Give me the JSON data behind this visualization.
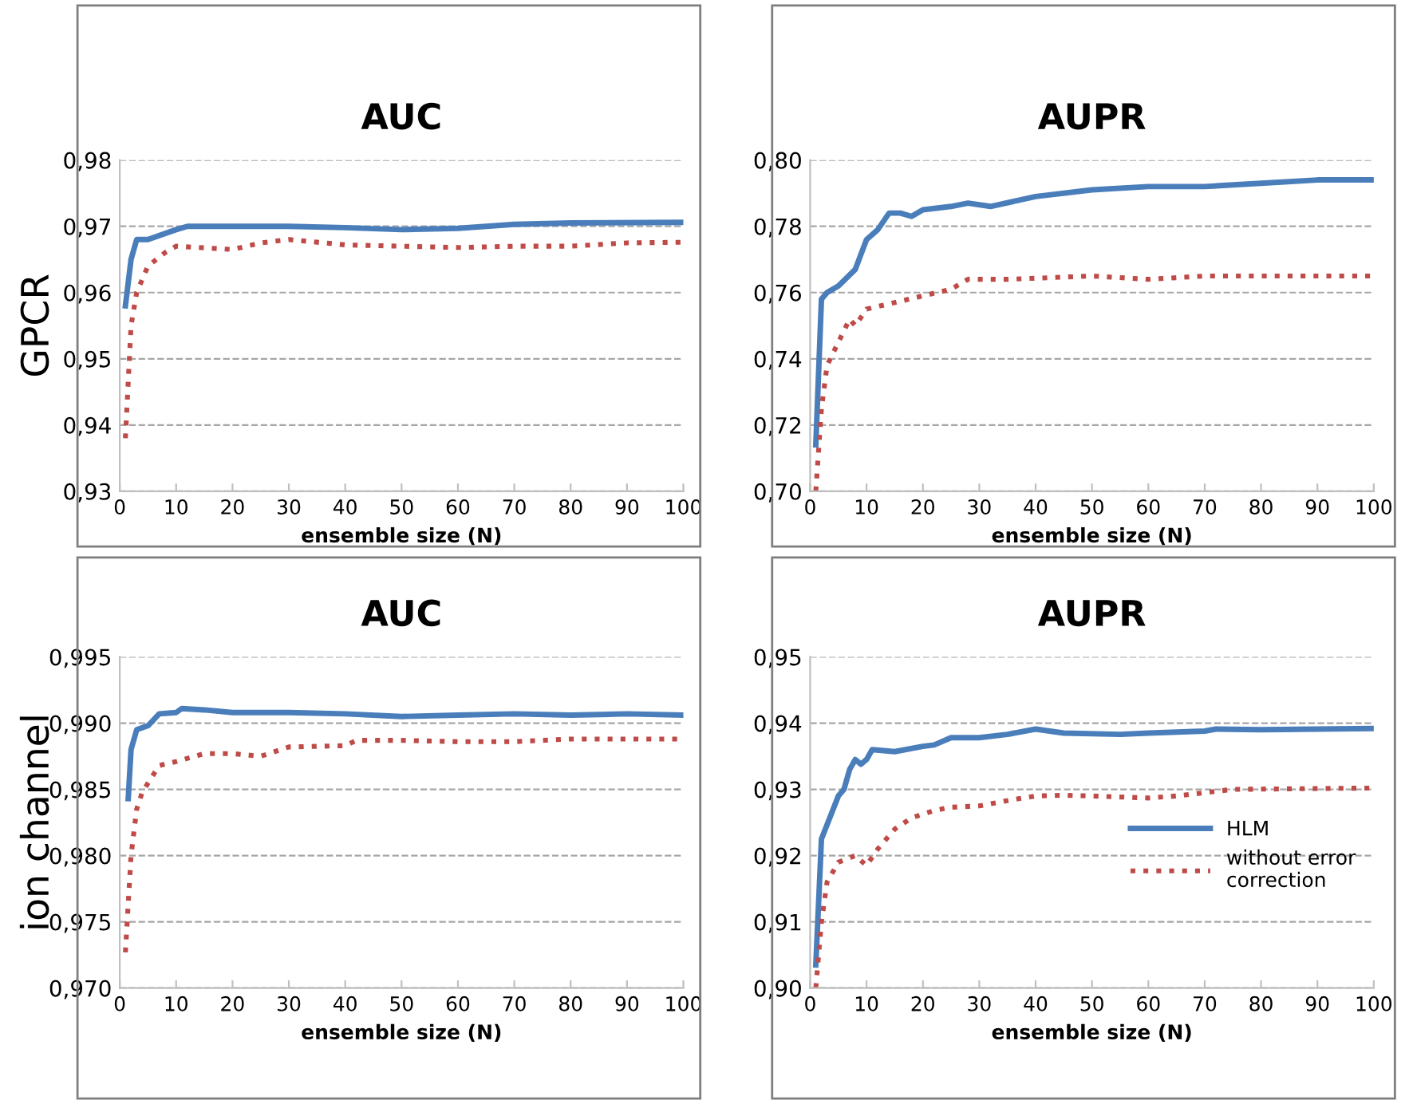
{
  "chart_data": [
    {
      "type": "line",
      "title": "AUC",
      "xlabel": "ensemble size (N)",
      "ylabel": "GPCR",
      "xlim": [
        0,
        100
      ],
      "ylim": [
        0.93,
        0.98
      ],
      "grid": "y",
      "legend": false,
      "marker": "none",
      "xticks": [
        0,
        10,
        20,
        30,
        40,
        50,
        60,
        70,
        80,
        90,
        100
      ],
      "yticks": [
        {
          "value": 0.93,
          "label": "0,93"
        },
        {
          "value": 0.94,
          "label": "0,94"
        },
        {
          "value": 0.95,
          "label": "0,95"
        },
        {
          "value": 0.96,
          "label": "0,96"
        },
        {
          "value": 0.97,
          "label": "0,97"
        },
        {
          "value": 0.98,
          "label": "0,98"
        }
      ],
      "series": [
        {
          "color": "#4a7ebb",
          "line_style": "solid",
          "x": [
            1,
            2,
            3,
            5,
            10,
            12,
            20,
            30,
            40,
            50,
            60,
            70,
            80,
            100
          ],
          "values": [
            0.958,
            0.965,
            0.968,
            0.968,
            0.9695,
            0.97,
            0.97,
            0.97,
            0.9698,
            0.9695,
            0.9697,
            0.9703,
            0.9705,
            0.9706
          ]
        },
        {
          "color": "#be4b48",
          "line_style": "dotted",
          "x": [
            1,
            2,
            3,
            5,
            8,
            10,
            20,
            25,
            30,
            40,
            50,
            60,
            70,
            80,
            90,
            100
          ],
          "values": [
            0.938,
            0.955,
            0.96,
            0.964,
            0.966,
            0.967,
            0.9665,
            0.9675,
            0.968,
            0.9672,
            0.967,
            0.9668,
            0.967,
            0.967,
            0.9675,
            0.9676
          ]
        }
      ]
    },
    {
      "type": "line",
      "title": "AUPR",
      "xlabel": "ensemble size (N)",
      "xlim": [
        0,
        100
      ],
      "ylim": [
        0.7,
        0.8
      ],
      "grid": "y",
      "legend": false,
      "marker": "none",
      "xticks": [
        0,
        10,
        20,
        30,
        40,
        50,
        60,
        70,
        80,
        90,
        100
      ],
      "yticks": [
        {
          "value": 0.7,
          "label": "0,70"
        },
        {
          "value": 0.72,
          "label": "0,72"
        },
        {
          "value": 0.74,
          "label": "0,74"
        },
        {
          "value": 0.76,
          "label": "0,76"
        },
        {
          "value": 0.78,
          "label": "0,78"
        },
        {
          "value": 0.8,
          "label": "0,80"
        }
      ],
      "series": [
        {
          "color": "#4a7ebb",
          "line_style": "solid",
          "x": [
            1,
            2,
            3,
            5,
            8,
            10,
            12,
            14,
            16,
            18,
            20,
            25,
            28,
            32,
            40,
            50,
            60,
            70,
            80,
            90,
            100
          ],
          "values": [
            0.714,
            0.758,
            0.76,
            0.762,
            0.767,
            0.776,
            0.779,
            0.784,
            0.784,
            0.783,
            0.785,
            0.786,
            0.787,
            0.786,
            0.789,
            0.791,
            0.792,
            0.792,
            0.793,
            0.794,
            0.794
          ]
        },
        {
          "color": "#be4b48",
          "line_style": "dotted",
          "x": [
            1,
            2,
            3,
            5,
            7,
            8,
            10,
            15,
            20,
            25,
            28,
            35,
            50,
            60,
            70,
            80,
            90,
            100
          ],
          "values": [
            0.7,
            0.725,
            0.738,
            0.745,
            0.752,
            0.75,
            0.755,
            0.757,
            0.759,
            0.761,
            0.764,
            0.764,
            0.765,
            0.764,
            0.765,
            0.765,
            0.765,
            0.765
          ]
        }
      ]
    },
    {
      "type": "line",
      "title": "AUC",
      "xlabel": "ensemble size (N)",
      "ylabel": "ion channel",
      "xlim": [
        0,
        100
      ],
      "ylim": [
        0.97,
        0.995
      ],
      "grid": "y",
      "legend": false,
      "marker": "none",
      "xticks": [
        0,
        10,
        20,
        30,
        40,
        50,
        60,
        70,
        80,
        90,
        100
      ],
      "yticks": [
        {
          "value": 0.97,
          "label": "0,970"
        },
        {
          "value": 0.975,
          "label": "0,975"
        },
        {
          "value": 0.98,
          "label": "0,980"
        },
        {
          "value": 0.985,
          "label": "0,985"
        },
        {
          "value": 0.99,
          "label": "0,990"
        },
        {
          "value": 0.995,
          "label": "0,995"
        }
      ],
      "series": [
        {
          "color": "#4a7ebb",
          "line_style": "solid",
          "x": [
            1.5,
            2,
            3,
            5,
            7,
            10,
            11,
            15,
            20,
            30,
            40,
            50,
            60,
            70,
            80,
            90,
            100
          ],
          "values": [
            0.9843,
            0.988,
            0.9895,
            0.9898,
            0.9907,
            0.9908,
            0.9911,
            0.991,
            0.9908,
            0.9908,
            0.9907,
            0.9905,
            0.9906,
            0.9907,
            0.9906,
            0.9907,
            0.9906
          ]
        },
        {
          "color": "#be4b48",
          "line_style": "dotted",
          "x": [
            1,
            2,
            3,
            4,
            7,
            10,
            15,
            20,
            25,
            30,
            40,
            42,
            50,
            60,
            70,
            80,
            100
          ],
          "values": [
            0.9727,
            0.98,
            0.9835,
            0.9848,
            0.9868,
            0.9871,
            0.9877,
            0.9877,
            0.9875,
            0.9882,
            0.9883,
            0.9887,
            0.9887,
            0.9886,
            0.9886,
            0.9888,
            0.9888
          ]
        }
      ]
    },
    {
      "type": "line",
      "title": "AUPR",
      "xlabel": "ensemble size (N)",
      "xlim": [
        0,
        100
      ],
      "ylim": [
        0.9,
        0.95
      ],
      "grid": "y",
      "legend": "right",
      "marker": "none",
      "xticks": [
        0,
        10,
        20,
        30,
        40,
        50,
        60,
        70,
        80,
        90,
        100
      ],
      "yticks": [
        {
          "value": 0.9,
          "label": "0,90"
        },
        {
          "value": 0.91,
          "label": "0,91"
        },
        {
          "value": 0.92,
          "label": "0,92"
        },
        {
          "value": 0.93,
          "label": "0,93"
        },
        {
          "value": 0.94,
          "label": "0,94"
        },
        {
          "value": 0.95,
          "label": "0,95"
        }
      ],
      "series": [
        {
          "name": "HLM",
          "color": "#4a7ebb",
          "line_style": "solid",
          "x": [
            1,
            2,
            5,
            6,
            7,
            8,
            9,
            10,
            11,
            15,
            20,
            22,
            25,
            30,
            35,
            40,
            45,
            55,
            60,
            70,
            72,
            80,
            90,
            100
          ],
          "values": [
            0.9035,
            0.9225,
            0.929,
            0.93,
            0.933,
            0.9345,
            0.9338,
            0.9345,
            0.936,
            0.9357,
            0.9365,
            0.9367,
            0.9378,
            0.9378,
            0.9383,
            0.9391,
            0.9385,
            0.9383,
            0.9385,
            0.9388,
            0.9391,
            0.939,
            0.9391,
            0.9392
          ]
        },
        {
          "name": "without error\ncorrection",
          "color": "#be4b48",
          "line_style": "dotted",
          "x": [
            1,
            2,
            3,
            5,
            8,
            10,
            12,
            15,
            18,
            22,
            25,
            30,
            35,
            40,
            45,
            50,
            60,
            65,
            70,
            75,
            100
          ],
          "values": [
            0.9,
            0.91,
            0.916,
            0.919,
            0.92,
            0.9185,
            0.921,
            0.924,
            0.9257,
            0.9268,
            0.9273,
            0.9275,
            0.9283,
            0.929,
            0.9291,
            0.929,
            0.9287,
            0.929,
            0.9295,
            0.93,
            0.9302
          ]
        }
      ]
    }
  ]
}
